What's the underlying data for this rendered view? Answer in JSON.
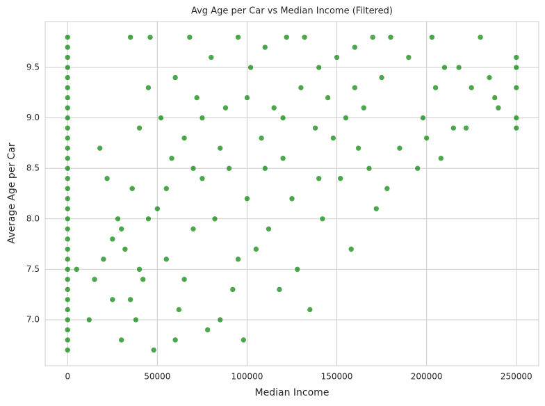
{
  "chart_data": {
    "type": "scatter",
    "title": "Avg Age per Car vs Median Income (Filtered)",
    "x_label": "Median Income",
    "y_label": "Average Age per Car",
    "color": "#008000",
    "grid": true,
    "xlim": [
      -12500,
      262500
    ],
    "ylim": [
      6.545,
      9.955
    ],
    "xticks": [
      0,
      50000,
      100000,
      150000,
      200000,
      250000
    ],
    "yticks": [
      {
        "value": 7,
        "label": "7.0"
      },
      7.5,
      {
        "value": 8,
        "label": "8.0"
      },
      8.5,
      {
        "value": 9,
        "label": "9.0"
      },
      9.5
    ],
    "x": [
      0,
      0,
      0,
      0,
      0,
      0,
      0,
      0,
      0,
      0,
      0,
      0,
      0,
      0,
      0,
      0,
      0,
      0,
      0,
      0,
      0,
      0,
      0,
      0,
      0,
      0,
      0,
      0,
      0,
      0,
      0,
      0,
      5000,
      12000,
      15000,
      18000,
      20000,
      22000,
      25000,
      28000,
      30000,
      32000,
      35000,
      36000,
      38000,
      40000,
      42000,
      45000,
      46000,
      48000,
      50000,
      52000,
      55000,
      58000,
      60000,
      62000,
      65000,
      68000,
      70000,
      72000,
      75000,
      78000,
      80000,
      82000,
      85000,
      88000,
      90000,
      92000,
      95000,
      98000,
      100000,
      102000,
      105000,
      108000,
      110000,
      112000,
      115000,
      118000,
      120000,
      122000,
      125000,
      128000,
      130000,
      132000,
      135000,
      138000,
      140000,
      142000,
      145000,
      148000,
      150000,
      152000,
      155000,
      158000,
      160000,
      162000,
      165000,
      168000,
      170000,
      172000,
      175000,
      178000,
      180000,
      185000,
      190000,
      195000,
      198000,
      200000,
      203000,
      205000,
      208000,
      210000,
      215000,
      218000,
      222000,
      225000,
      230000,
      235000,
      238000,
      240000,
      250000,
      250000,
      250000,
      250000,
      250000,
      30000,
      40000,
      55000,
      65000,
      75000,
      85000,
      100000,
      110000,
      60000,
      45000,
      35000,
      25000,
      70000,
      95000,
      120000,
      140000,
      160000
    ],
    "values": [
      6.7,
      6.8,
      6.9,
      7.0,
      7.1,
      7.2,
      7.3,
      7.4,
      7.5,
      7.6,
      7.7,
      7.8,
      7.9,
      8.0,
      8.1,
      8.2,
      8.3,
      8.4,
      8.5,
      8.6,
      8.7,
      8.8,
      8.9,
      9.0,
      9.1,
      9.2,
      9.3,
      9.4,
      9.5,
      9.6,
      9.7,
      9.8,
      7.5,
      7.0,
      7.4,
      8.7,
      7.6,
      8.4,
      7.2,
      8.0,
      6.8,
      7.7,
      9.8,
      8.3,
      7.0,
      8.9,
      7.4,
      9.3,
      9.8,
      6.7,
      8.1,
      9.0,
      7.6,
      8.6,
      9.4,
      7.1,
      8.8,
      9.8,
      7.9,
      9.2,
      8.4,
      6.9,
      9.6,
      8.0,
      7.0,
      9.1,
      8.5,
      7.3,
      9.8,
      6.8,
      8.2,
      9.5,
      7.7,
      8.8,
      9.7,
      7.9,
      9.1,
      7.3,
      8.6,
      9.8,
      8.2,
      7.5,
      9.3,
      9.8,
      7.1,
      8.9,
      9.5,
      8.0,
      9.2,
      8.8,
      9.6,
      8.4,
      9.0,
      7.7,
      9.7,
      8.7,
      9.1,
      8.5,
      9.8,
      8.1,
      9.4,
      8.3,
      9.8,
      8.7,
      9.6,
      8.5,
      9.0,
      8.8,
      9.8,
      9.3,
      8.6,
      9.5,
      8.9,
      9.5,
      8.9,
      9.3,
      9.8,
      9.4,
      9.2,
      9.1,
      9.6,
      9.5,
      9.3,
      9.0,
      8.9,
      7.9,
      7.5,
      8.3,
      7.4,
      9.0,
      8.7,
      9.2,
      8.5,
      6.8,
      8.0,
      7.2,
      7.8,
      8.5,
      7.6,
      9.0,
      8.4,
      9.3
    ]
  }
}
